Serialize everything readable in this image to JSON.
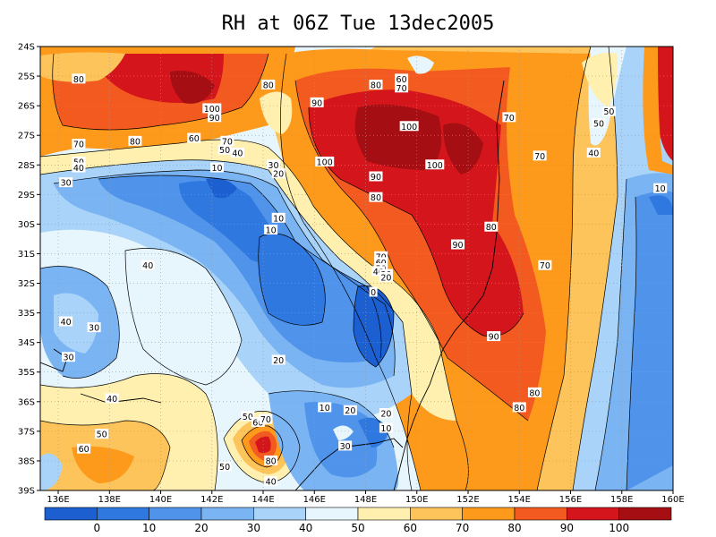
{
  "title": "RH at 06Z Tue 13dec2005",
  "lat_ticks": [
    "24S",
    "25S",
    "26S",
    "27S",
    "28S",
    "29S",
    "30S",
    "31S",
    "32S",
    "33S",
    "34S",
    "35S",
    "36S",
    "37S",
    "38S",
    "39S"
  ],
  "lon_ticks": [
    "136E",
    "138E",
    "140E",
    "142E",
    "144E",
    "146E",
    "148E",
    "150E",
    "152E",
    "154E",
    "156E",
    "158E",
    "160E"
  ],
  "colorbar": {
    "colors": [
      "#1b5fd0",
      "#2f78e0",
      "#4f93ea",
      "#7ab4f2",
      "#a9d3f8",
      "#e7f5fd",
      "#fff0b0",
      "#fcc45a",
      "#fd9a1c",
      "#f25a20",
      "#d4161c",
      "#a50f14"
    ],
    "labels": [
      "0",
      "10",
      "20",
      "30",
      "40",
      "50",
      "60",
      "70",
      "80",
      "90",
      "100"
    ]
  },
  "contour_labels": [
    {
      "text": "80",
      "lon": 136.8,
      "lat": 25.1
    },
    {
      "text": "100",
      "lon": 142.0,
      "lat": 26.1
    },
    {
      "text": "90",
      "lon": 142.1,
      "lat": 26.4
    },
    {
      "text": "80",
      "lon": 144.2,
      "lat": 25.3
    },
    {
      "text": "90",
      "lon": 146.1,
      "lat": 25.9
    },
    {
      "text": "80",
      "lon": 148.4,
      "lat": 25.3
    },
    {
      "text": "60",
      "lon": 149.4,
      "lat": 25.1
    },
    {
      "text": "70",
      "lon": 149.4,
      "lat": 25.4
    },
    {
      "text": "100",
      "lon": 149.7,
      "lat": 26.7
    },
    {
      "text": "70",
      "lon": 153.6,
      "lat": 26.4
    },
    {
      "text": "50",
      "lon": 157.1,
      "lat": 26.6
    },
    {
      "text": "50",
      "lon": 157.5,
      "lat": 26.2
    },
    {
      "text": "70",
      "lon": 154.8,
      "lat": 27.7
    },
    {
      "text": "40",
      "lon": 156.9,
      "lat": 27.6
    },
    {
      "text": "70",
      "lon": 136.8,
      "lat": 27.3
    },
    {
      "text": "80",
      "lon": 139.0,
      "lat": 27.2
    },
    {
      "text": "60",
      "lon": 141.3,
      "lat": 27.1
    },
    {
      "text": "70",
      "lon": 142.6,
      "lat": 27.2
    },
    {
      "text": "50",
      "lon": 142.5,
      "lat": 27.5
    },
    {
      "text": "40",
      "lon": 143.0,
      "lat": 27.6
    },
    {
      "text": "100",
      "lon": 146.4,
      "lat": 27.9
    },
    {
      "text": "100",
      "lon": 150.7,
      "lat": 28.0
    },
    {
      "text": "50",
      "lon": 136.8,
      "lat": 27.9
    },
    {
      "text": "40",
      "lon": 136.8,
      "lat": 28.1
    },
    {
      "text": "30",
      "lon": 136.3,
      "lat": 28.6
    },
    {
      "text": "10",
      "lon": 142.2,
      "lat": 28.1
    },
    {
      "text": "30",
      "lon": 144.4,
      "lat": 28.0
    },
    {
      "text": "20",
      "lon": 144.6,
      "lat": 28.3
    },
    {
      "text": "90",
      "lon": 148.4,
      "lat": 28.4
    },
    {
      "text": "80",
      "lon": 148.4,
      "lat": 29.1
    },
    {
      "text": "10",
      "lon": 159.5,
      "lat": 28.8
    },
    {
      "text": "10",
      "lon": 144.6,
      "lat": 29.8
    },
    {
      "text": "10",
      "lon": 144.3,
      "lat": 30.2
    },
    {
      "text": "80",
      "lon": 152.9,
      "lat": 30.1
    },
    {
      "text": "90",
      "lon": 151.6,
      "lat": 30.7
    },
    {
      "text": "70",
      "lon": 148.6,
      "lat": 31.1
    },
    {
      "text": "60",
      "lon": 148.6,
      "lat": 31.3
    },
    {
      "text": "50",
      "lon": 148.6,
      "lat": 31.5
    },
    {
      "text": "40",
      "lon": 148.5,
      "lat": 31.6
    },
    {
      "text": "30",
      "lon": 148.8,
      "lat": 31.7
    },
    {
      "text": "20",
      "lon": 148.8,
      "lat": 31.8
    },
    {
      "text": "40",
      "lon": 139.5,
      "lat": 31.4
    },
    {
      "text": "70",
      "lon": 155.0,
      "lat": 31.4
    },
    {
      "text": "0",
      "lon": 148.3,
      "lat": 32.3
    },
    {
      "text": "40",
      "lon": 136.3,
      "lat": 33.3
    },
    {
      "text": "30",
      "lon": 137.4,
      "lat": 33.5
    },
    {
      "text": "90",
      "lon": 153.0,
      "lat": 33.8
    },
    {
      "text": "30",
      "lon": 136.4,
      "lat": 34.5
    },
    {
      "text": "20",
      "lon": 144.6,
      "lat": 34.6
    },
    {
      "text": "40",
      "lon": 138.1,
      "lat": 35.9
    },
    {
      "text": "80",
      "lon": 154.6,
      "lat": 35.7
    },
    {
      "text": "80",
      "lon": 154.0,
      "lat": 36.2
    },
    {
      "text": "10",
      "lon": 146.4,
      "lat": 36.2
    },
    {
      "text": "20",
      "lon": 147.4,
      "lat": 36.3
    },
    {
      "text": "20",
      "lon": 148.8,
      "lat": 36.4
    },
    {
      "text": "10",
      "lon": 148.8,
      "lat": 36.9
    },
    {
      "text": "50",
      "lon": 143.4,
      "lat": 36.5
    },
    {
      "text": "60",
      "lon": 143.8,
      "lat": 36.7
    },
    {
      "text": "70",
      "lon": 144.1,
      "lat": 36.6
    },
    {
      "text": "50",
      "lon": 137.7,
      "lat": 37.1
    },
    {
      "text": "30",
      "lon": 147.2,
      "lat": 37.5
    },
    {
      "text": "60",
      "lon": 137.0,
      "lat": 37.6
    },
    {
      "text": "80",
      "lon": 144.3,
      "lat": 38.0
    },
    {
      "text": "50",
      "lon": 142.5,
      "lat": 38.2
    },
    {
      "text": "40",
      "lon": 144.3,
      "lat": 38.7
    }
  ]
}
